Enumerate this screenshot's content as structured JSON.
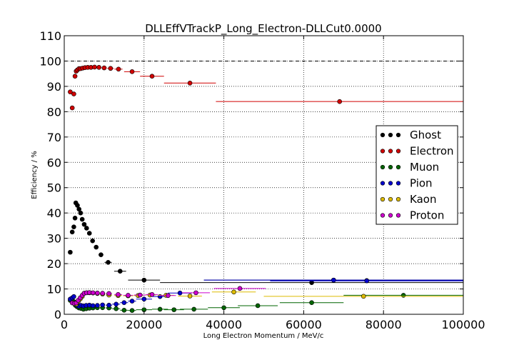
{
  "chart_data": {
    "type": "scatter",
    "title": "DLLEffVTrackP_Long_Electron-DLLCut0.0000",
    "xlabel": "Long Electron Momentum / MeV/c",
    "ylabel": "Efficiency / %",
    "xlim": [
      0,
      100000
    ],
    "ylim": [
      0,
      110
    ],
    "xticks": [
      0,
      20000,
      40000,
      60000,
      80000,
      100000
    ],
    "yticks": [
      0,
      10,
      20,
      30,
      40,
      50,
      60,
      70,
      80,
      90,
      100,
      110
    ],
    "xtick_labels": [
      "0",
      "20000",
      "40000",
      "60000",
      "80000",
      "100000"
    ],
    "ytick_labels": [
      "0",
      "10",
      "20",
      "30",
      "40",
      "50",
      "60",
      "70",
      "80",
      "90",
      "100",
      "110"
    ],
    "grid": true,
    "reference_line": 100,
    "legend_position": "center-right",
    "series": [
      {
        "name": "Ghost",
        "color": "#000000",
        "points": [
          [
            1500,
            24.5,
            500
          ],
          [
            2000,
            32.5,
            250
          ],
          [
            2400,
            34.5,
            200
          ],
          [
            2700,
            38,
            150
          ],
          [
            2900,
            44,
            150
          ],
          [
            3300,
            43,
            200
          ],
          [
            3700,
            41.5,
            200
          ],
          [
            4100,
            40,
            200
          ],
          [
            4500,
            37.5,
            200
          ],
          [
            5000,
            35.5,
            250
          ],
          [
            5600,
            34,
            300
          ],
          [
            6300,
            32,
            350
          ],
          [
            7100,
            29,
            400
          ],
          [
            8000,
            26.5,
            500
          ],
          [
            9200,
            23.5,
            600
          ],
          [
            11000,
            20.5,
            900
          ],
          [
            14000,
            17,
            1500
          ],
          [
            20000,
            13.5,
            4000
          ],
          [
            62000,
            12.5,
            38000
          ],
          [
            67500,
            13.5,
            32500
          ],
          [
            75800,
            13.3,
            24200
          ]
        ]
      },
      {
        "name": "Electron",
        "color": "#d00000",
        "points": [
          [
            1500,
            87.8,
            500
          ],
          [
            2000,
            81.5,
            250
          ],
          [
            2400,
            87,
            200
          ],
          [
            2700,
            94,
            150
          ],
          [
            3000,
            96,
            150
          ],
          [
            3300,
            96.5,
            150
          ],
          [
            3700,
            97,
            200
          ],
          [
            4100,
            97,
            200
          ],
          [
            4600,
            97.2,
            250
          ],
          [
            5200,
            97.4,
            300
          ],
          [
            5900,
            97.5,
            350
          ],
          [
            6700,
            97.5,
            400
          ],
          [
            7600,
            97.6,
            450
          ],
          [
            8700,
            97.5,
            550
          ],
          [
            10000,
            97.3,
            650
          ],
          [
            11600,
            97.1,
            800
          ],
          [
            13600,
            96.8,
            1000
          ],
          [
            17000,
            95.8,
            2000
          ],
          [
            22000,
            94,
            3000
          ],
          [
            31500,
            91.3,
            6500
          ],
          [
            69000,
            84,
            31000
          ]
        ]
      },
      {
        "name": "Muon",
        "color": "#006400",
        "points": [
          [
            1500,
            5.5,
            500
          ],
          [
            2000,
            6,
            250
          ],
          [
            2400,
            5,
            200
          ],
          [
            2800,
            3.5,
            200
          ],
          [
            3200,
            3,
            200
          ],
          [
            3700,
            2.5,
            250
          ],
          [
            4200,
            2.3,
            250
          ],
          [
            4800,
            2,
            300
          ],
          [
            5500,
            2.2,
            350
          ],
          [
            6300,
            2.4,
            400
          ],
          [
            7200,
            2.5,
            450
          ],
          [
            8300,
            2.6,
            550
          ],
          [
            9600,
            2.6,
            650
          ],
          [
            11200,
            2.5,
            800
          ],
          [
            13000,
            2.2,
            1000
          ],
          [
            15000,
            1.6,
            1000
          ],
          [
            17000,
            1.5,
            1000
          ],
          [
            20000,
            1.8,
            2000
          ],
          [
            24000,
            2,
            2000
          ],
          [
            27500,
            1.8,
            2500
          ],
          [
            32500,
            2,
            3500
          ],
          [
            40000,
            2.6,
            4000
          ],
          [
            48500,
            3.4,
            5000
          ],
          [
            62000,
            4.6,
            8000
          ],
          [
            85000,
            7.5,
            15000
          ]
        ]
      },
      {
        "name": "Pion",
        "color": "#0000cc",
        "points": [
          [
            1500,
            6,
            500
          ],
          [
            2000,
            6.5,
            250
          ],
          [
            2400,
            7,
            200
          ],
          [
            2800,
            4.5,
            200
          ],
          [
            3200,
            3.5,
            200
          ],
          [
            3700,
            3.2,
            250
          ],
          [
            4200,
            3.5,
            250
          ],
          [
            4800,
            3.3,
            300
          ],
          [
            5500,
            3.5,
            350
          ],
          [
            6300,
            3.6,
            400
          ],
          [
            7200,
            3.4,
            450
          ],
          [
            8300,
            3.5,
            550
          ],
          [
            9600,
            3.7,
            650
          ],
          [
            11200,
            3.6,
            800
          ],
          [
            13000,
            4,
            1000
          ],
          [
            15000,
            4.6,
            1000
          ],
          [
            17000,
            5.2,
            1000
          ],
          [
            20000,
            6,
            2000
          ],
          [
            24000,
            7,
            2000
          ],
          [
            29000,
            8.4,
            3000
          ],
          [
            67500,
            13.5,
            32500
          ],
          [
            75800,
            13.2,
            24200
          ]
        ]
      },
      {
        "name": "Kaon",
        "color": "#ddbb00",
        "points": [
          [
            2500,
            4.5,
            500
          ],
          [
            3000,
            4,
            300
          ],
          [
            3500,
            5,
            300
          ],
          [
            4000,
            6,
            300
          ],
          [
            4500,
            7,
            300
          ],
          [
            5000,
            8.3,
            300
          ],
          [
            5600,
            8.5,
            350
          ],
          [
            6300,
            8.5,
            400
          ],
          [
            7200,
            8.4,
            450
          ],
          [
            8300,
            8.2,
            550
          ],
          [
            9600,
            8,
            650
          ],
          [
            11200,
            7.6,
            800
          ],
          [
            13500,
            7.4,
            1000
          ],
          [
            16000,
            7.3,
            1200
          ],
          [
            18500,
            7.4,
            1200
          ],
          [
            21500,
            7.6,
            1500
          ],
          [
            25500,
            7.5,
            2000
          ],
          [
            31500,
            7.2,
            3000
          ],
          [
            42500,
            8.8,
            5500
          ],
          [
            75000,
            7.1,
            25000
          ]
        ]
      },
      {
        "name": "Proton",
        "color": "#cc00cc",
        "points": [
          [
            2000,
            4.5,
            500
          ],
          [
            2500,
            4.3,
            300
          ],
          [
            3000,
            4.5,
            300
          ],
          [
            3500,
            5.5,
            300
          ],
          [
            4000,
            6.5,
            300
          ],
          [
            4500,
            7.5,
            300
          ],
          [
            5000,
            8.3,
            300
          ],
          [
            5600,
            8.5,
            350
          ],
          [
            6300,
            8.6,
            400
          ],
          [
            7200,
            8.5,
            450
          ],
          [
            8300,
            8.4,
            550
          ],
          [
            9600,
            8.3,
            650
          ],
          [
            11200,
            8.2,
            800
          ],
          [
            13500,
            7.8,
            1000
          ],
          [
            16000,
            7.5,
            1200
          ],
          [
            19000,
            7.6,
            1500
          ],
          [
            22000,
            7.8,
            1500
          ],
          [
            26000,
            7.4,
            2000
          ],
          [
            33000,
            8.5,
            3500
          ],
          [
            44000,
            10.2,
            6500
          ]
        ]
      }
    ]
  }
}
